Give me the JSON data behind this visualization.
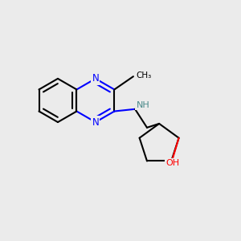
{
  "background_color": "#ebebeb",
  "bond_color": "#000000",
  "N_color": "#0000ff",
  "O_color": "#ff0000",
  "NH_color": "#4a8a8a",
  "line_width": 1.5,
  "dbo": 0.018,
  "figsize": [
    3.0,
    3.0
  ],
  "dpi": 100,
  "xlim": [
    0.0,
    1.0
  ],
  "ylim": [
    0.05,
    1.05
  ]
}
